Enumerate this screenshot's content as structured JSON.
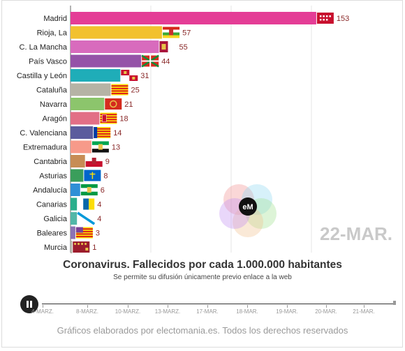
{
  "chart_data": {
    "type": "bar",
    "orientation": "horizontal",
    "categories": [
      "Madrid",
      "Rioja, La",
      "C. La Mancha",
      "País Vasco",
      "Castilla y León",
      "Cataluña",
      "Navarra",
      "Aragón",
      "C. Valenciana",
      "Extremadura",
      "Cantabria",
      "Asturias",
      "Andalucía",
      "Canarias",
      "Galicia",
      "Baleares",
      "Murcia"
    ],
    "values": [
      153,
      57,
      55,
      44,
      31,
      25,
      21,
      18,
      14,
      13,
      9,
      8,
      6,
      4,
      4,
      3,
      1
    ],
    "colors": [
      "#e43d96",
      "#f2c12e",
      "#d86bbd",
      "#9553a8",
      "#1fadb8",
      "#b5b3a5",
      "#8cc56c",
      "#e26f86",
      "#5b5c9d",
      "#f79a8a",
      "#c78c55",
      "#3a9e5b",
      "#2f8fd6",
      "#2bae8c",
      "#52b7a8",
      "#8b72b5",
      "#b5b3a5"
    ],
    "xlim": [
      0,
      160
    ],
    "gridlines": [
      0,
      50,
      100,
      150
    ],
    "date_label": "22-MAR.",
    "title": "Coronavirus. Fallecidos por cada 1.000.000 habitantes",
    "subtitle": "Se permite su difusión únicamente previo enlace a la web",
    "timeline_labels": [
      "4-MARZ.",
      "8-MARZ.",
      "10-MARZ.",
      "13-MARZ.",
      "17-MAR.",
      "18-MAR.",
      "19-MAR.",
      "20-MAR.",
      "21-MAR."
    ],
    "timeline_position": 1.0,
    "flag_icons": [
      "madrid-flag-icon",
      "rioja-flag-icon",
      "castilla-la-mancha-flag-icon",
      "pais-vasco-flag-icon",
      "castilla-y-leon-flag-icon",
      "cataluna-flag-icon",
      "navarra-flag-icon",
      "aragon-flag-icon",
      "valencia-flag-icon",
      "extremadura-flag-icon",
      "cantabria-flag-icon",
      "asturias-flag-icon",
      "andalucia-flag-icon",
      "canarias-flag-icon",
      "galicia-flag-icon",
      "baleares-flag-icon",
      "murcia-flag-icon"
    ]
  },
  "logo": {
    "text": "eM"
  },
  "credits": "Gráficos elaborados por electomania.es. Todos los derechos reservados"
}
